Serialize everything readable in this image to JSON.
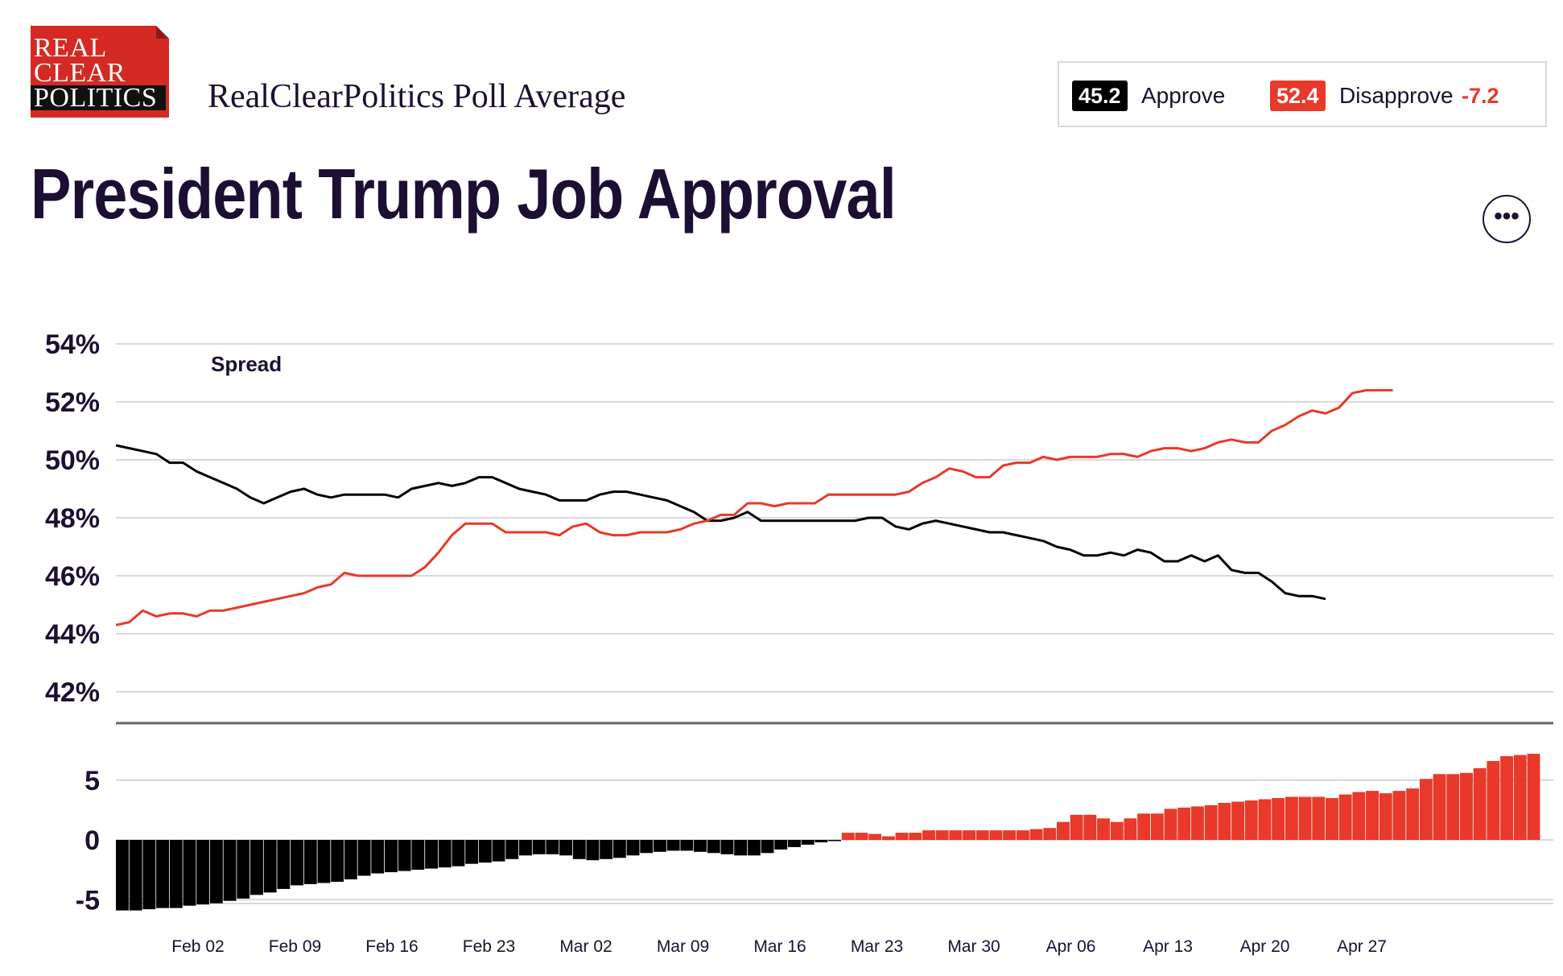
{
  "logo": {
    "lines": [
      "REAL",
      "CLEAR",
      "POLITICS"
    ]
  },
  "subtitle": "RealClearPolitics Poll Average",
  "title": "President Trump Job Approval",
  "legend": {
    "approve_value": "45.2",
    "approve_label": "Approve",
    "disapprove_value": "52.4",
    "disapprove_label": "Disapprove",
    "spread_value": "-7.2"
  },
  "menu": {
    "icon": "more-horizontal-icon",
    "glyph": "•••"
  },
  "colors": {
    "approve": "#000000",
    "disapprove": "#e8392a",
    "text": "#1c0f33"
  },
  "chart_data": [
    {
      "type": "line",
      "y_tick_labels": [
        "54%",
        "52%",
        "50%",
        "48%",
        "46%",
        "44%",
        "42%"
      ],
      "ylim": [
        42,
        54
      ],
      "grid": true,
      "x_tick_labels": [
        "Feb 02",
        "Feb 09",
        "Feb 16",
        "Feb 23",
        "Mar 02",
        "Mar 09",
        "Mar 16",
        "Mar 23",
        "Mar 30",
        "Apr 06",
        "Apr 13",
        "Apr 20",
        "Apr 27"
      ],
      "series": [
        {
          "color": "#000000",
          "points": [
            [
              0,
              50.5
            ],
            [
              1,
              50.4
            ],
            [
              2,
              50.3
            ],
            [
              3,
              50.2
            ],
            [
              4,
              49.9
            ],
            [
              5,
              49.9
            ],
            [
              6,
              49.6
            ],
            [
              7,
              49.4
            ],
            [
              8,
              49.2
            ],
            [
              9,
              49.0
            ],
            [
              10,
              48.7
            ],
            [
              11,
              48.5
            ],
            [
              12,
              48.7
            ],
            [
              13,
              48.9
            ],
            [
              14,
              49.0
            ],
            [
              15,
              48.8
            ],
            [
              16,
              48.7
            ],
            [
              17,
              48.8
            ],
            [
              18,
              48.8
            ],
            [
              19,
              48.8
            ],
            [
              20,
              48.8
            ],
            [
              21,
              48.7
            ],
            [
              22,
              49.0
            ],
            [
              23,
              49.1
            ],
            [
              24,
              49.2
            ],
            [
              25,
              49.1
            ],
            [
              26,
              49.2
            ],
            [
              27,
              49.4
            ],
            [
              28,
              49.4
            ],
            [
              29,
              49.2
            ],
            [
              30,
              49.0
            ],
            [
              31,
              48.9
            ],
            [
              32,
              48.8
            ],
            [
              33,
              48.6
            ],
            [
              34,
              48.6
            ],
            [
              35,
              48.6
            ],
            [
              36,
              48.8
            ],
            [
              37,
              48.9
            ],
            [
              38,
              48.9
            ],
            [
              39,
              48.8
            ],
            [
              40,
              48.7
            ],
            [
              41,
              48.6
            ],
            [
              42,
              48.4
            ],
            [
              43,
              48.2
            ],
            [
              44,
              47.9
            ],
            [
              45,
              47.9
            ],
            [
              46,
              48.0
            ],
            [
              47,
              48.2
            ],
            [
              48,
              47.9
            ],
            [
              49,
              47.9
            ],
            [
              50,
              47.9
            ],
            [
              51,
              47.9
            ],
            [
              52,
              47.9
            ],
            [
              53,
              47.9
            ],
            [
              54,
              47.9
            ],
            [
              55,
              47.9
            ],
            [
              56,
              48.0
            ],
            [
              57,
              48.0
            ],
            [
              58,
              47.7
            ],
            [
              59,
              47.6
            ],
            [
              60,
              47.8
            ],
            [
              61,
              47.9
            ],
            [
              62,
              47.8
            ],
            [
              63,
              47.7
            ],
            [
              64,
              47.6
            ],
            [
              65,
              47.5
            ],
            [
              66,
              47.5
            ],
            [
              67,
              47.4
            ],
            [
              68,
              47.3
            ],
            [
              69,
              47.2
            ],
            [
              70,
              47.0
            ],
            [
              71,
              46.9
            ],
            [
              72,
              46.7
            ],
            [
              73,
              46.7
            ],
            [
              74,
              46.8
            ],
            [
              75,
              46.7
            ],
            [
              76,
              46.9
            ],
            [
              77,
              46.8
            ],
            [
              78,
              46.5
            ],
            [
              79,
              46.5
            ],
            [
              80,
              46.7
            ],
            [
              81,
              46.5
            ],
            [
              82,
              46.7
            ],
            [
              83,
              46.2
            ],
            [
              84,
              46.1
            ],
            [
              85,
              46.1
            ],
            [
              86,
              45.8
            ],
            [
              87,
              45.4
            ],
            [
              88,
              45.3
            ],
            [
              89,
              45.3
            ],
            [
              90,
              45.2
            ]
          ]
        },
        {
          "color": "#e8392a",
          "points": [
            [
              0,
              44.3
            ],
            [
              1,
              44.4
            ],
            [
              2,
              44.8
            ],
            [
              3,
              44.6
            ],
            [
              4,
              44.7
            ],
            [
              5,
              44.7
            ],
            [
              6,
              44.6
            ],
            [
              7,
              44.8
            ],
            [
              8,
              44.8
            ],
            [
              9,
              44.9
            ],
            [
              10,
              45.0
            ],
            [
              11,
              45.1
            ],
            [
              12,
              45.2
            ],
            [
              13,
              45.3
            ],
            [
              14,
              45.4
            ],
            [
              15,
              45.6
            ],
            [
              16,
              45.7
            ],
            [
              17,
              46.1
            ],
            [
              18,
              46.0
            ],
            [
              19,
              46.0
            ],
            [
              20,
              46.0
            ],
            [
              21,
              46.0
            ],
            [
              22,
              46.0
            ],
            [
              23,
              46.3
            ],
            [
              24,
              46.8
            ],
            [
              25,
              47.4
            ],
            [
              26,
              47.8
            ],
            [
              27,
              47.8
            ],
            [
              28,
              47.8
            ],
            [
              29,
              47.5
            ],
            [
              30,
              47.5
            ],
            [
              31,
              47.5
            ],
            [
              32,
              47.5
            ],
            [
              33,
              47.4
            ],
            [
              34,
              47.7
            ],
            [
              35,
              47.8
            ],
            [
              36,
              47.5
            ],
            [
              37,
              47.4
            ],
            [
              38,
              47.4
            ],
            [
              39,
              47.5
            ],
            [
              40,
              47.5
            ],
            [
              41,
              47.5
            ],
            [
              42,
              47.6
            ],
            [
              43,
              47.8
            ],
            [
              44,
              47.9
            ],
            [
              45,
              48.1
            ],
            [
              46,
              48.1
            ],
            [
              47,
              48.5
            ],
            [
              48,
              48.5
            ],
            [
              49,
              48.4
            ],
            [
              50,
              48.5
            ],
            [
              51,
              48.5
            ],
            [
              52,
              48.5
            ],
            [
              53,
              48.8
            ],
            [
              54,
              48.8
            ],
            [
              55,
              48.8
            ],
            [
              56,
              48.8
            ],
            [
              57,
              48.8
            ],
            [
              58,
              48.8
            ],
            [
              59,
              48.9
            ],
            [
              60,
              49.2
            ],
            [
              61,
              49.4
            ],
            [
              62,
              49.7
            ],
            [
              63,
              49.6
            ],
            [
              64,
              49.4
            ],
            [
              65,
              49.4
            ],
            [
              66,
              49.8
            ],
            [
              67,
              49.9
            ],
            [
              68,
              49.9
            ],
            [
              69,
              50.1
            ],
            [
              70,
              50.0
            ],
            [
              71,
              50.1
            ],
            [
              72,
              50.1
            ],
            [
              73,
              50.1
            ],
            [
              74,
              50.2
            ],
            [
              75,
              50.2
            ],
            [
              76,
              50.1
            ],
            [
              77,
              50.3
            ],
            [
              78,
              50.4
            ],
            [
              79,
              50.4
            ],
            [
              80,
              50.3
            ],
            [
              81,
              50.4
            ],
            [
              82,
              50.6
            ],
            [
              83,
              50.7
            ],
            [
              84,
              50.6
            ],
            [
              85,
              50.6
            ],
            [
              86,
              51.0
            ],
            [
              87,
              51.2
            ],
            [
              88,
              51.5
            ],
            [
              89,
              51.7
            ],
            [
              90,
              51.6
            ],
            [
              91,
              51.8
            ],
            [
              92,
              52.3
            ],
            [
              93,
              52.4
            ],
            [
              94,
              52.4
            ],
            [
              95,
              52.4
            ]
          ]
        }
      ]
    },
    {
      "type": "bar",
      "title": "Spread",
      "y_tick_labels": [
        "5",
        "0",
        "-5"
      ],
      "ylim": [
        -6,
        7.5
      ],
      "grid": true,
      "approve_color": "#000000",
      "disapprove_color": "#e8392a",
      "values": [
        -5.9,
        -5.9,
        -5.8,
        -5.7,
        -5.7,
        -5.5,
        -5.4,
        -5.3,
        -5.1,
        -4.9,
        -4.6,
        -4.4,
        -4.1,
        -3.8,
        -3.7,
        -3.6,
        -3.5,
        -3.3,
        -3.0,
        -2.8,
        -2.7,
        -2.6,
        -2.5,
        -2.4,
        -2.3,
        -2.2,
        -2.0,
        -1.9,
        -1.8,
        -1.6,
        -1.3,
        -1.2,
        -1.2,
        -1.3,
        -1.6,
        -1.7,
        -1.6,
        -1.5,
        -1.3,
        -1.1,
        -1.0,
        -0.9,
        -0.9,
        -1.0,
        -1.1,
        -1.2,
        -1.3,
        -1.3,
        -1.1,
        -0.8,
        -0.6,
        -0.4,
        -0.2,
        -0.1,
        0.6,
        0.6,
        0.5,
        0.3,
        0.6,
        0.6,
        0.8,
        0.8,
        0.8,
        0.8,
        0.8,
        0.8,
        0.8,
        0.8,
        0.9,
        1.0,
        1.5,
        2.1,
        2.1,
        1.8,
        1.5,
        1.8,
        2.2,
        2.2,
        2.6,
        2.7,
        2.8,
        2.9,
        3.1,
        3.2,
        3.3,
        3.4,
        3.5,
        3.6,
        3.6,
        3.6,
        3.5,
        3.8,
        4.0,
        4.1,
        3.9,
        4.1,
        4.3,
        5.1,
        5.5,
        5.5,
        5.6,
        6.0,
        6.6,
        7.0,
        7.1,
        7.2
      ]
    }
  ]
}
